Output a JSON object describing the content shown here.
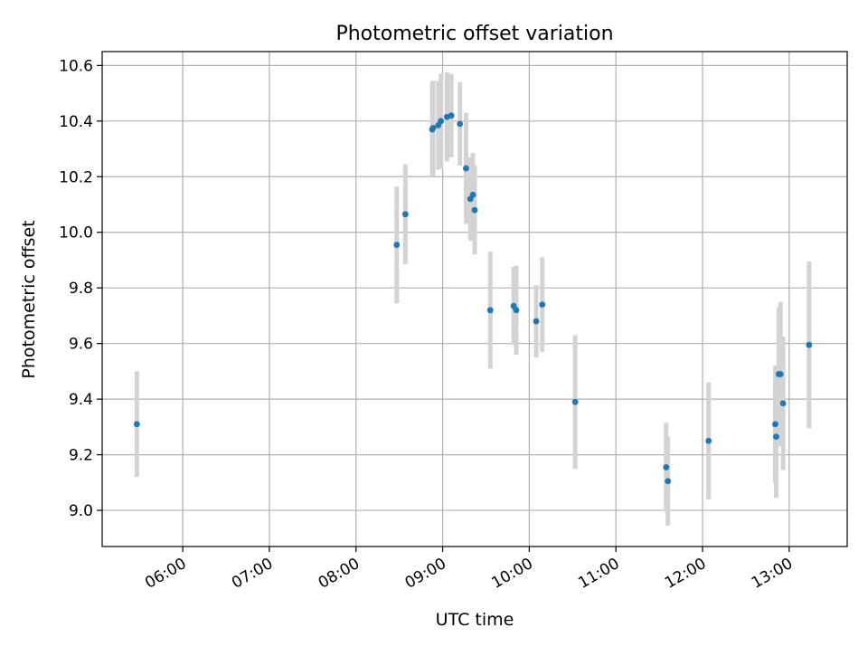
{
  "colors": {
    "points": "#1f77b4",
    "errorbars": "#d3d3d3",
    "grid": "#b0b0b0",
    "axes": "#000000",
    "background": "#ffffff"
  },
  "chart_data": {
    "type": "scatter",
    "title": "Photometric offset variation",
    "xlabel": "UTC time",
    "ylabel": "Photometric offset",
    "grid": true,
    "x_unit": "hours UTC (decimal)",
    "xlim": [
      5.07,
      13.67
    ],
    "ylim": [
      8.87,
      10.65
    ],
    "x_ticks": [
      6,
      7,
      8,
      9,
      10,
      11,
      12,
      13
    ],
    "x_tick_labels": [
      "06:00",
      "07:00",
      "08:00",
      "09:00",
      "10:00",
      "11:00",
      "12:00",
      "13:00"
    ],
    "y_ticks": [
      9.0,
      9.2,
      9.4,
      9.6,
      9.8,
      10.0,
      10.2,
      10.4,
      10.6
    ],
    "y_tick_labels": [
      "9.0",
      "9.2",
      "9.4",
      "9.6",
      "9.8",
      "10.0",
      "10.2",
      "10.4",
      "10.6"
    ],
    "series": [
      {
        "points": [
          {
            "x": 5.47,
            "y": 9.31,
            "err": 0.19
          },
          {
            "x": 8.47,
            "y": 9.955,
            "err": 0.21
          },
          {
            "x": 8.57,
            "y": 10.065,
            "err": 0.18
          },
          {
            "x": 8.88,
            "y": 10.37,
            "err": 0.17
          },
          {
            "x": 8.89,
            "y": 10.375,
            "err": 0.17
          },
          {
            "x": 8.95,
            "y": 10.385,
            "err": 0.16
          },
          {
            "x": 8.98,
            "y": 10.4,
            "err": 0.17
          },
          {
            "x": 9.05,
            "y": 10.415,
            "err": 0.16
          },
          {
            "x": 9.1,
            "y": 10.42,
            "err": 0.15
          },
          {
            "x": 9.2,
            "y": 10.39,
            "err": 0.15
          },
          {
            "x": 9.27,
            "y": 10.23,
            "err": 0.2
          },
          {
            "x": 9.32,
            "y": 10.12,
            "err": 0.15
          },
          {
            "x": 9.35,
            "y": 10.135,
            "err": 0.15
          },
          {
            "x": 9.37,
            "y": 10.08,
            "err": 0.16
          },
          {
            "x": 9.55,
            "y": 9.72,
            "err": 0.21
          },
          {
            "x": 9.82,
            "y": 9.735,
            "err": 0.14
          },
          {
            "x": 9.85,
            "y": 9.72,
            "err": 0.16
          },
          {
            "x": 10.08,
            "y": 9.68,
            "err": 0.13
          },
          {
            "x": 10.15,
            "y": 9.74,
            "err": 0.17
          },
          {
            "x": 10.53,
            "y": 9.39,
            "err": 0.24
          },
          {
            "x": 11.58,
            "y": 9.155,
            "err": 0.16
          },
          {
            "x": 11.6,
            "y": 9.105,
            "err": 0.16
          },
          {
            "x": 12.07,
            "y": 9.25,
            "err": 0.21
          },
          {
            "x": 12.84,
            "y": 9.31,
            "err": 0.21
          },
          {
            "x": 12.85,
            "y": 9.265,
            "err": 0.22
          },
          {
            "x": 12.88,
            "y": 9.49,
            "err": 0.24
          },
          {
            "x": 12.9,
            "y": 9.49,
            "err": 0.26
          },
          {
            "x": 12.93,
            "y": 9.385,
            "err": 0.24
          },
          {
            "x": 13.23,
            "y": 9.595,
            "err": 0.3
          }
        ]
      }
    ]
  }
}
